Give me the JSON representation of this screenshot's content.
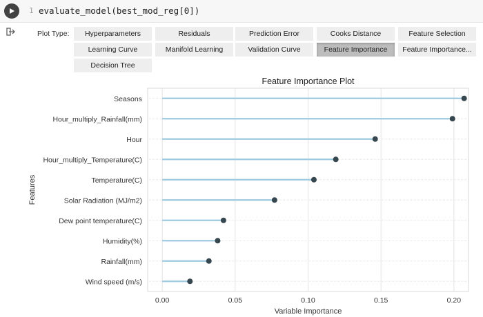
{
  "cell": {
    "line_number": "1",
    "code": "evaluate_model(best_mod_reg[0])"
  },
  "plot_type_label": "Plot Type:",
  "tabs": [
    {
      "label": "Hyperparameters",
      "active": false
    },
    {
      "label": "Residuals",
      "active": false
    },
    {
      "label": "Prediction Error",
      "active": false
    },
    {
      "label": "Cooks Distance",
      "active": false
    },
    {
      "label": "Feature Selection",
      "active": false
    },
    {
      "label": "Learning Curve",
      "active": false
    },
    {
      "label": "Manifold Learning",
      "active": false
    },
    {
      "label": "Validation Curve",
      "active": false
    },
    {
      "label": "Feature Importance",
      "active": true
    },
    {
      "label": "Feature Importance...",
      "active": false
    },
    {
      "label": "Decision Tree",
      "active": false
    }
  ],
  "colors": {
    "accent": "#bdbdbd",
    "stem": "#9ecae1",
    "dot": "#37474f"
  },
  "chart_data": {
    "type": "lollipop",
    "title": "Feature Importance Plot",
    "xlabel": "Variable Importance",
    "ylabel": "Features",
    "xlim": [
      -0.01,
      0.21
    ],
    "xticks": [
      "0.00",
      "0.05",
      "0.10",
      "0.15",
      "0.20"
    ],
    "grid": true,
    "categories": [
      "Seasons",
      "Hour_multiply_Rainfall(mm)",
      "Hour",
      "Hour_multiply_Temperature(C)",
      "Temperature(C)",
      "Solar Radiation (MJ/m2)",
      "Dew point temperature(C)",
      "Humidity(%)",
      "Rainfall(mm)",
      "Wind speed (m/s)"
    ],
    "values": [
      0.207,
      0.199,
      0.146,
      0.119,
      0.104,
      0.077,
      0.042,
      0.038,
      0.032,
      0.019
    ]
  }
}
